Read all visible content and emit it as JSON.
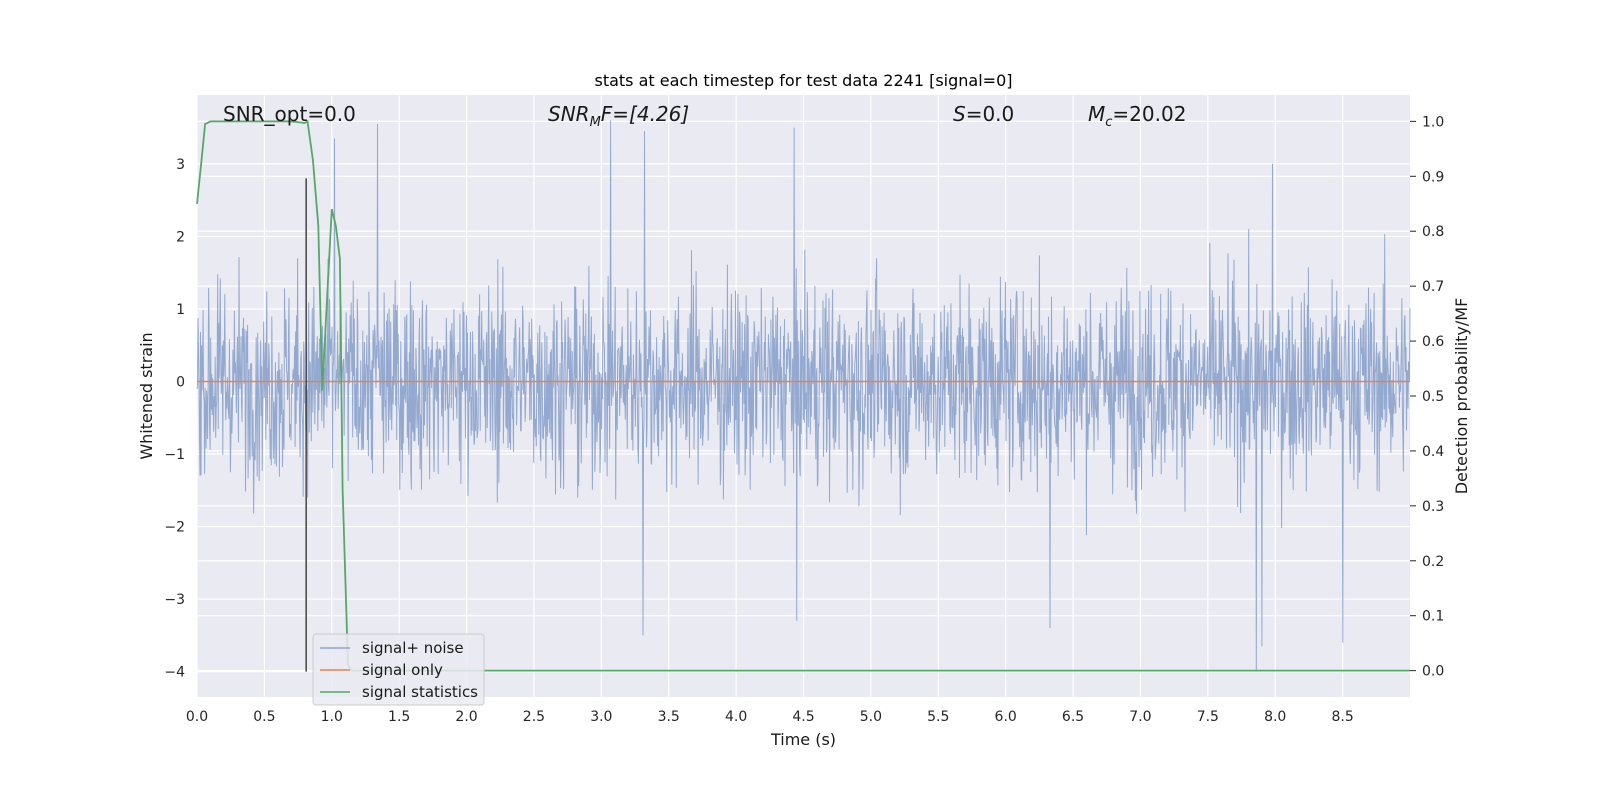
{
  "chart_data": {
    "type": "line",
    "title": "stats at each timestep for test data 2241 [signal=0]",
    "xlabel": "Time (s)",
    "ylabel": "Whitened strain",
    "y2label": "Detection probability/MF",
    "xlim": [
      0.0,
      9.0
    ],
    "ylim": [
      -4.35,
      3.95
    ],
    "y2lim": [
      -0.048,
      1.048
    ],
    "xticks": [
      "0.0",
      "0.5",
      "1.0",
      "1.5",
      "2.0",
      "2.5",
      "3.0",
      "3.5",
      "4.0",
      "4.5",
      "5.0",
      "5.5",
      "6.0",
      "6.5",
      "7.0",
      "7.5",
      "8.0",
      "8.5"
    ],
    "yticks": [
      "3",
      "2",
      "1",
      "0",
      "−1",
      "−2",
      "−3",
      "−4"
    ],
    "y2ticks": [
      "1.0",
      "0.9",
      "0.8",
      "0.7",
      "0.6",
      "0.5",
      "0.4",
      "0.3",
      "0.2",
      "0.1",
      "0.0"
    ],
    "grid": true,
    "legend_position": "lower-left",
    "colors": {
      "noise": "#8fa5cd",
      "signal": "#dd8452",
      "stats": "#55a868",
      "marker": "#444444",
      "axes_bg": "#eaeaf2",
      "grid": "#ffffff"
    },
    "annotations": {
      "snr_opt": "SNR_opt=0.0",
      "snr_mf_main": "SNR",
      "snr_mf_sub": "M",
      "snr_mf_rest": "F=[4.26]",
      "s_italic": "S",
      "s_rest": "=0.0",
      "mc_main": "M",
      "mc_sub": "c",
      "mc_rest": "=20.02"
    },
    "marker_line": {
      "x": 0.81,
      "y_range": [
        -4.0,
        2.8
      ]
    },
    "series": [
      {
        "name": "signal+ noise",
        "kind": "noise",
        "approx_abs_p99": 2.6,
        "peak_points": [
          {
            "x": 1.02,
            "y": 3.35
          },
          {
            "x": 1.34,
            "y": 3.55
          },
          {
            "x": 3.07,
            "y": 3.6
          },
          {
            "x": 3.32,
            "y": 3.45
          },
          {
            "x": 4.43,
            "y": 3.5
          },
          {
            "x": 7.98,
            "y": 3.0
          },
          {
            "x": 3.31,
            "y": -3.5
          },
          {
            "x": 4.45,
            "y": -3.3
          },
          {
            "x": 6.33,
            "y": -3.4
          },
          {
            "x": 7.86,
            "y": -4.0
          },
          {
            "x": 7.9,
            "y": -3.65
          },
          {
            "x": 8.5,
            "y": -3.6
          }
        ]
      },
      {
        "name": "signal only",
        "kind": "signal",
        "x": [
          0.0,
          9.0
        ],
        "y": [
          0.0,
          0.0
        ]
      },
      {
        "name": "signal statistics",
        "kind": "stats",
        "axis": "right",
        "x": [
          0.0,
          0.03,
          0.06,
          0.1,
          0.15,
          0.3,
          0.5,
          0.7,
          0.8,
          0.82,
          0.86,
          0.9,
          0.93,
          0.97,
          1.0,
          1.03,
          1.06,
          1.08,
          1.12,
          1.15,
          1.2,
          2.0,
          3.0,
          4.0,
          5.0,
          6.0,
          7.0,
          8.0,
          9.0
        ],
        "y": [
          0.85,
          0.92,
          0.995,
          1.0,
          1.0,
          1.0,
          1.0,
          1.0,
          0.997,
          1.0,
          0.93,
          0.81,
          0.51,
          0.7,
          0.84,
          0.81,
          0.75,
          0.33,
          0.01,
          0.0,
          0.0,
          0.0,
          0.0,
          0.0,
          0.0,
          0.0,
          0.0,
          0.0,
          0.0
        ]
      }
    ]
  }
}
